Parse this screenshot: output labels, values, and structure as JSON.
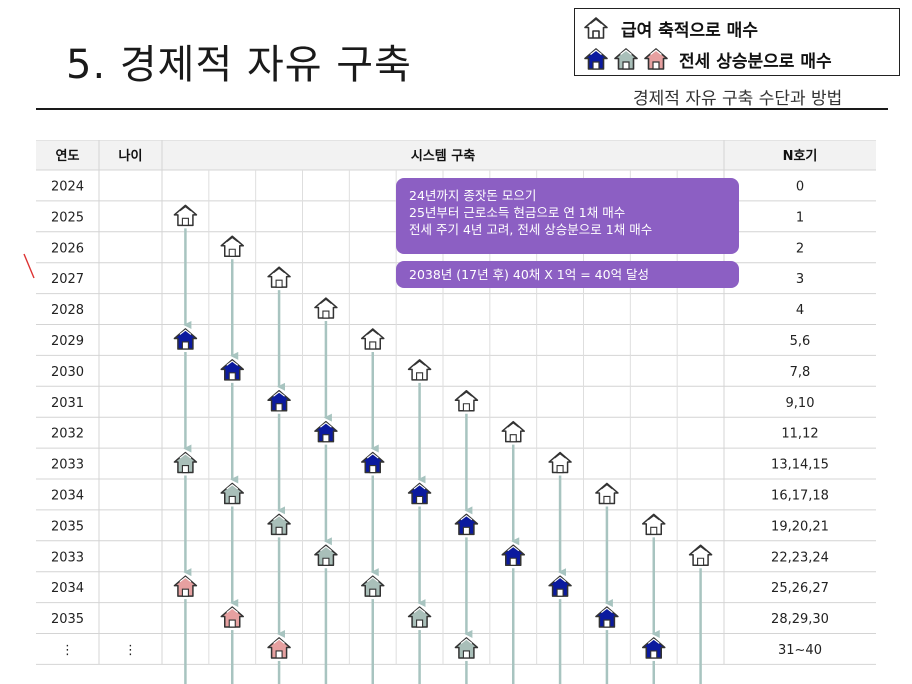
{
  "header": {
    "title": "5. 경제적 자유 구축",
    "subtitle": "경제적 자유 구축 수단과 방법"
  },
  "legend": {
    "row1": "급여 축적으로 매수",
    "row2": "전세 상승분으로 매수"
  },
  "table": {
    "headers": [
      "연도",
      "나이",
      "시스템 구축",
      "N호기"
    ],
    "rows": [
      {
        "year": "2024",
        "age": "",
        "n": "0"
      },
      {
        "year": "2025",
        "age": "",
        "n": "1"
      },
      {
        "year": "2026",
        "age": "",
        "n": "2"
      },
      {
        "year": "2027",
        "age": "",
        "n": "3"
      },
      {
        "year": "2028",
        "age": "",
        "n": "4"
      },
      {
        "year": "2029",
        "age": "",
        "n": "5,6"
      },
      {
        "year": "2030",
        "age": "",
        "n": "7,8"
      },
      {
        "year": "2031",
        "age": "",
        "n": "9,10"
      },
      {
        "year": "2032",
        "age": "",
        "n": "11,12"
      },
      {
        "year": "2033",
        "age": "",
        "n": "13,14,15"
      },
      {
        "year": "2034",
        "age": "",
        "n": "16,17,18"
      },
      {
        "year": "2035",
        "age": "",
        "n": "19,20,21"
      },
      {
        "year": "2033",
        "age": "",
        "n": "22,23,24"
      },
      {
        "year": "2034",
        "age": "",
        "n": "25,26,27"
      },
      {
        "year": "2035",
        "age": "",
        "n": "28,29,30"
      },
      {
        "year": "⋮",
        "age": "⋮",
        "n": "31~40"
      }
    ]
  },
  "annotations": {
    "box1": [
      "24년까지 종잣돈 모으기",
      "25년부터 근로소득 현금으로 연 1채 매수",
      "전세 주기 4년 고려, 전세 상승분으로 1채 매수"
    ],
    "box2": "2038년 (17년  후) 40채 X 1억 = 40억 달성"
  },
  "houses": {
    "columns": 12,
    "colors": {
      "outline": "#ffffff",
      "blue": "#0b1a9e",
      "gray": "#a9bfb9",
      "pink": "#e6a0a0"
    },
    "cycle": [
      "outline",
      "blue",
      "gray",
      "pink"
    ],
    "arrow_color": "#a8c4c0",
    "purchase_start_rows": [
      1,
      2,
      3,
      4,
      5,
      6,
      7,
      8,
      9,
      10,
      11,
      12
    ]
  }
}
